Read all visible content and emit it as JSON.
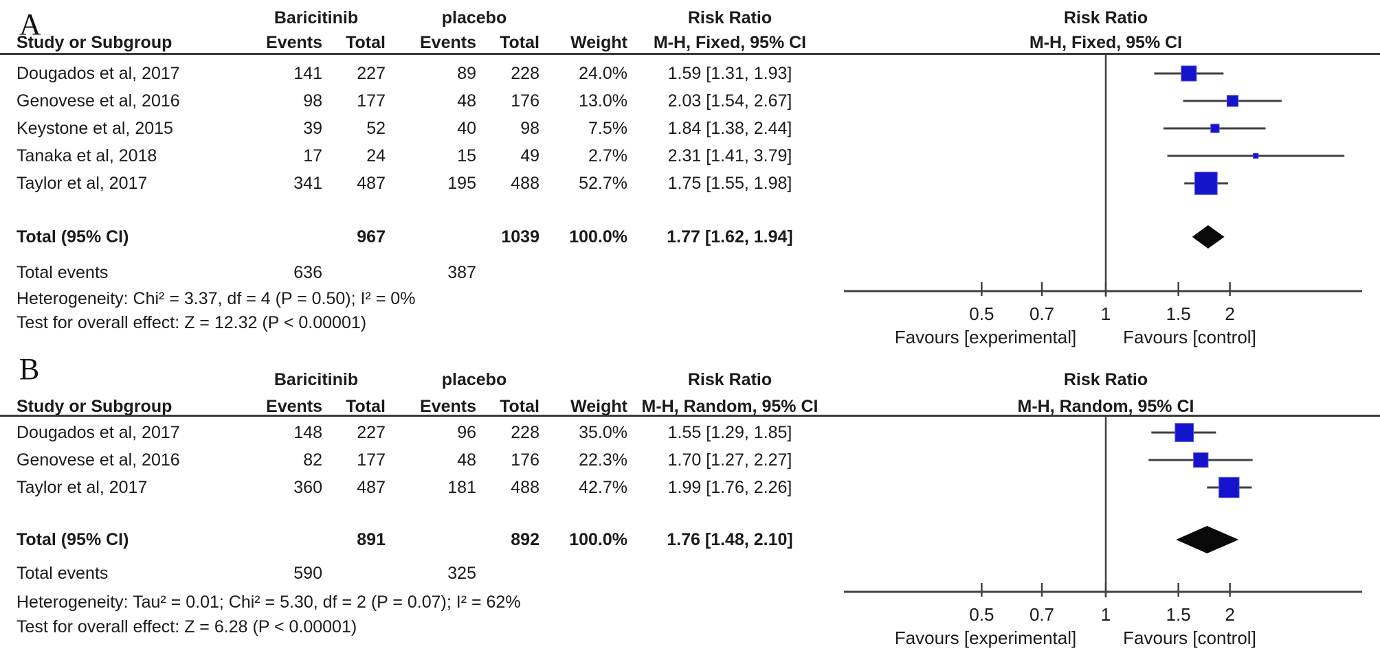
{
  "figure": {
    "group1": "Baricitinib",
    "group2": "placebo",
    "columns": {
      "study": "Study or Subgroup",
      "events": "Events",
      "total": "Total",
      "weight": "Weight"
    },
    "marker_color": "#1414CC",
    "diamond_color": "#0a0a0a",
    "line_color": "#404040"
  },
  "chart_data": [
    {
      "type": "forest",
      "panel_label": "A",
      "effect_measure": "Risk Ratio",
      "method": "M-H, Fixed, 95% CI",
      "studies": [
        {
          "name": "Dougados et al, 2017",
          "events1": 141,
          "total1": 227,
          "events2": 89,
          "total2": 228,
          "weight": "24.0%",
          "weight_pct": 24.0,
          "rr": 1.59,
          "ci_low": 1.31,
          "ci_high": 1.93,
          "estimate_label": "1.59 [1.31, 1.93]"
        },
        {
          "name": "Genovese et al, 2016",
          "events1": 98,
          "total1": 177,
          "events2": 48,
          "total2": 176,
          "weight": "13.0%",
          "weight_pct": 13.0,
          "rr": 2.03,
          "ci_low": 1.54,
          "ci_high": 2.67,
          "estimate_label": "2.03 [1.54, 2.67]"
        },
        {
          "name": "Keystone et al, 2015",
          "events1": 39,
          "total1": 52,
          "events2": 40,
          "total2": 98,
          "weight": "7.5%",
          "weight_pct": 7.5,
          "rr": 1.84,
          "ci_low": 1.38,
          "ci_high": 2.44,
          "estimate_label": "1.84 [1.38, 2.44]"
        },
        {
          "name": "Tanaka et al, 2018",
          "events1": 17,
          "total1": 24,
          "events2": 15,
          "total2": 49,
          "weight": "2.7%",
          "weight_pct": 2.7,
          "rr": 2.31,
          "ci_low": 1.41,
          "ci_high": 3.79,
          "estimate_label": "2.31 [1.41, 3.79]"
        },
        {
          "name": "Taylor et al, 2017",
          "events1": 341,
          "total1": 487,
          "events2": 195,
          "total2": 488,
          "weight": "52.7%",
          "weight_pct": 52.7,
          "rr": 1.75,
          "ci_low": 1.55,
          "ci_high": 1.98,
          "estimate_label": "1.75 [1.55, 1.98]"
        }
      ],
      "total": {
        "label": "Total (95% CI)",
        "total1": 967,
        "total2": 1039,
        "weight": "100.0%",
        "rr": 1.77,
        "ci_low": 1.62,
        "ci_high": 1.94,
        "estimate_label": "1.77 [1.62, 1.94]"
      },
      "total_events": {
        "label": "Total events",
        "events1": 636,
        "events2": 387
      },
      "heterogeneity": "Heterogeneity: Chi² = 3.37, df = 4 (P = 0.50); I² = 0%",
      "overall_effect": "Test for overall effect: Z = 12.32 (P < 0.00001)",
      "axis": {
        "scale": "log",
        "ticks": [
          0.5,
          0.7,
          1,
          1.5,
          2
        ],
        "range": [
          0.23,
          4.2
        ],
        "left_label": "Favours [experimental]",
        "right_label": "Favours [control]"
      }
    },
    {
      "type": "forest",
      "panel_label": "B",
      "effect_measure": "Risk Ratio",
      "method": "M-H, Random, 95% CI",
      "studies": [
        {
          "name": "Dougados et al, 2017",
          "events1": 148,
          "total1": 227,
          "events2": 96,
          "total2": 228,
          "weight": "35.0%",
          "weight_pct": 35.0,
          "rr": 1.55,
          "ci_low": 1.29,
          "ci_high": 1.85,
          "estimate_label": "1.55 [1.29, 1.85]"
        },
        {
          "name": "Genovese et al, 2016",
          "events1": 82,
          "total1": 177,
          "events2": 48,
          "total2": 176,
          "weight": "22.3%",
          "weight_pct": 22.3,
          "rr": 1.7,
          "ci_low": 1.27,
          "ci_high": 2.27,
          "estimate_label": "1.70 [1.27, 2.27]"
        },
        {
          "name": "Taylor et al, 2017",
          "events1": 360,
          "total1": 487,
          "events2": 181,
          "total2": 488,
          "weight": "42.7%",
          "weight_pct": 42.7,
          "rr": 1.99,
          "ci_low": 1.76,
          "ci_high": 2.26,
          "estimate_label": "1.99 [1.76, 2.26]"
        }
      ],
      "total": {
        "label": "Total (95% CI)",
        "total1": 891,
        "total2": 892,
        "weight": "100.0%",
        "rr": 1.76,
        "ci_low": 1.48,
        "ci_high": 2.1,
        "estimate_label": "1.76 [1.48, 2.10]"
      },
      "total_events": {
        "label": "Total events",
        "events1": 590,
        "events2": 325
      },
      "heterogeneity": "Heterogeneity: Tau² = 0.01; Chi² = 5.30, df = 2 (P = 0.07); I² = 62%",
      "overall_effect": "Test for overall effect: Z = 6.28 (P < 0.00001)",
      "axis": {
        "scale": "log",
        "ticks": [
          0.5,
          0.7,
          1,
          1.5,
          2
        ],
        "range": [
          0.23,
          4.2
        ],
        "left_label": "Favours [experimental]",
        "right_label": "Favours [control]"
      }
    }
  ]
}
